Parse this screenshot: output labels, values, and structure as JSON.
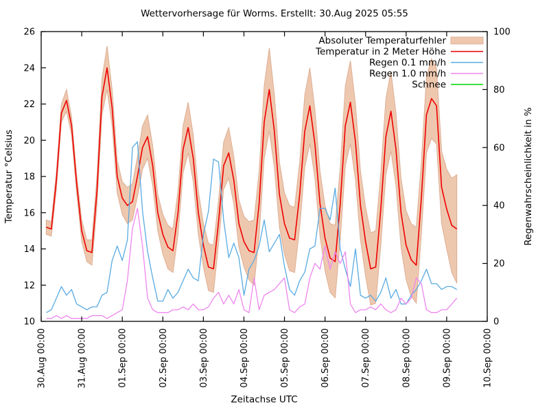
{
  "chart_data": {
    "type": "line",
    "title": "Wettervorhersage für Worms. Erstellt: 30.Aug 2025 05:55",
    "xlabel": "Zeitachse UTC",
    "ylabel_left": "Temperatur °Celsius",
    "ylabel_right": "Regenwahrscheinlichkeit in %",
    "background_color": "#ffffff",
    "axis_color": "#000000",
    "legend_position": "top-right-inside",
    "grid": false,
    "x_axis": {
      "days": 11,
      "tick_labels": [
        "30.Aug 00:00",
        "31.Aug 00:00",
        "01.Sep 00:00",
        "02.Sep 00:00",
        "03.Sep 00:00",
        "04.Sep 00:00",
        "05.Sep 00:00",
        "06.Sep 00:00",
        "07.Sep 00:00",
        "08.Sep 00:00",
        "09.Sep 00:00",
        "10.Sep 00:00"
      ]
    },
    "y_left": {
      "min": 10,
      "max": 26,
      "step": 2,
      "tick_labels": [
        "10",
        "12",
        "14",
        "16",
        "18",
        "20",
        "22",
        "24",
        "26"
      ]
    },
    "y_right": {
      "min": 0,
      "max": 100,
      "step": 20,
      "tick_labels": [
        "0",
        "20",
        "40",
        "60",
        "80",
        "100"
      ]
    },
    "x_start_hour": 3,
    "x_step_hours": 3,
    "x_time_origin": "30.Aug 00:00 UTC",
    "series": [
      {
        "name": "Absoluter Temperaturfehler",
        "type": "band",
        "axis": "left",
        "color": "#eec8ae",
        "border_color": "#ddae94",
        "center_series_index": 1,
        "halfwidth": [
          0.4,
          0.4,
          0.5,
          0.5,
          0.6,
          0.5,
          0.5,
          0.6,
          0.6,
          0.7,
          0.8,
          1.0,
          1.2,
          1.0,
          0.9,
          0.9,
          1.0,
          1.0,
          1.1,
          1.2,
          1.2,
          1.1,
          1.0,
          1.1,
          1.2,
          1.2,
          1.2,
          1.3,
          1.4,
          1.3,
          1.2,
          1.2,
          1.3,
          1.3,
          1.2,
          1.3,
          1.4,
          1.3,
          1.3,
          1.4,
          1.6,
          1.8,
          1.8,
          2.0,
          2.3,
          2.0,
          1.8,
          1.7,
          1.8,
          1.8,
          1.8,
          2.0,
          2.1,
          1.9,
          1.8,
          1.8,
          1.9,
          2.0,
          2.0,
          2.2,
          2.3,
          2.1,
          1.9,
          1.9,
          2.0,
          2.0,
          2.0,
          2.1,
          2.2,
          2.0,
          1.9,
          1.9,
          2.0,
          2.1,
          2.0,
          2.1,
          2.2,
          2.1,
          2.0,
          2.2,
          2.6,
          3.0
        ]
      },
      {
        "name": "Temperatur in 2 Meter Höhe",
        "type": "line",
        "axis": "left",
        "color": "#ee0000",
        "values": [
          15.2,
          15.1,
          17.8,
          21.5,
          22.2,
          20.8,
          17.6,
          15.0,
          13.9,
          13.8,
          17.2,
          22.4,
          24.0,
          21.8,
          18.0,
          16.8,
          16.4,
          16.6,
          18.0,
          19.6,
          20.2,
          18.6,
          16.0,
          14.8,
          14.1,
          13.9,
          16.0,
          19.5,
          20.7,
          19.0,
          16.0,
          14.2,
          13.0,
          12.9,
          15.5,
          18.6,
          19.3,
          17.8,
          15.4,
          14.4,
          13.9,
          13.8,
          16.5,
          21.0,
          22.8,
          20.5,
          17.0,
          15.4,
          14.6,
          14.5,
          17.0,
          20.5,
          21.9,
          19.8,
          16.5,
          14.6,
          13.5,
          13.3,
          16.5,
          20.8,
          22.1,
          19.9,
          16.4,
          14.4,
          12.9,
          13.0,
          16.2,
          20.2,
          21.6,
          19.5,
          16.0,
          14.2,
          13.4,
          13.1,
          16.8,
          21.4,
          22.3,
          21.9,
          17.4,
          16.2,
          15.3,
          15.1
        ]
      },
      {
        "name": "Regen 0.1 mm/h",
        "type": "line",
        "axis": "right",
        "color": "#58aae2",
        "values": [
          3,
          4,
          8,
          12,
          9,
          11,
          6,
          5,
          4,
          5,
          5,
          9,
          10,
          21,
          26,
          21,
          28,
          60,
          62,
          38,
          24,
          15,
          7,
          7,
          11,
          8,
          10,
          14,
          18,
          15,
          14,
          30,
          38,
          56,
          55,
          35,
          22,
          27,
          22,
          9,
          18,
          21,
          26,
          35,
          24,
          27,
          30,
          19,
          11,
          9,
          14,
          17,
          25,
          26,
          39,
          39,
          35,
          46,
          25,
          18,
          12,
          25,
          9,
          8,
          9,
          7,
          10,
          15,
          8,
          11,
          6,
          6,
          9,
          11,
          14,
          18,
          13,
          13,
          11,
          12,
          12,
          11
        ]
      },
      {
        "name": "Regen 1.0 mm/h",
        "type": "line",
        "axis": "right",
        "color": "#ee85ee",
        "values": [
          1,
          1,
          2,
          1,
          2,
          1,
          1,
          1,
          1,
          2,
          2,
          2,
          1,
          2,
          3,
          4,
          14,
          32,
          39,
          26,
          8,
          4,
          3,
          3,
          3,
          4,
          4,
          5,
          4,
          6,
          4,
          4,
          5,
          8,
          10,
          6,
          9,
          6,
          11,
          4,
          3,
          15,
          4,
          9,
          10,
          11,
          13,
          15,
          4,
          3,
          5,
          6,
          15,
          20,
          18,
          26,
          18,
          24,
          20,
          24,
          6,
          3,
          4,
          4,
          5,
          4,
          6,
          4,
          3,
          4,
          8,
          6,
          8,
          15,
          13,
          4,
          3,
          3,
          4,
          4,
          6,
          8
        ]
      },
      {
        "name": "Schnee",
        "type": "line",
        "axis": "right",
        "color": "#00d400",
        "values": [],
        "constant_value": 0,
        "visible_in_plot": false
      }
    ]
  }
}
